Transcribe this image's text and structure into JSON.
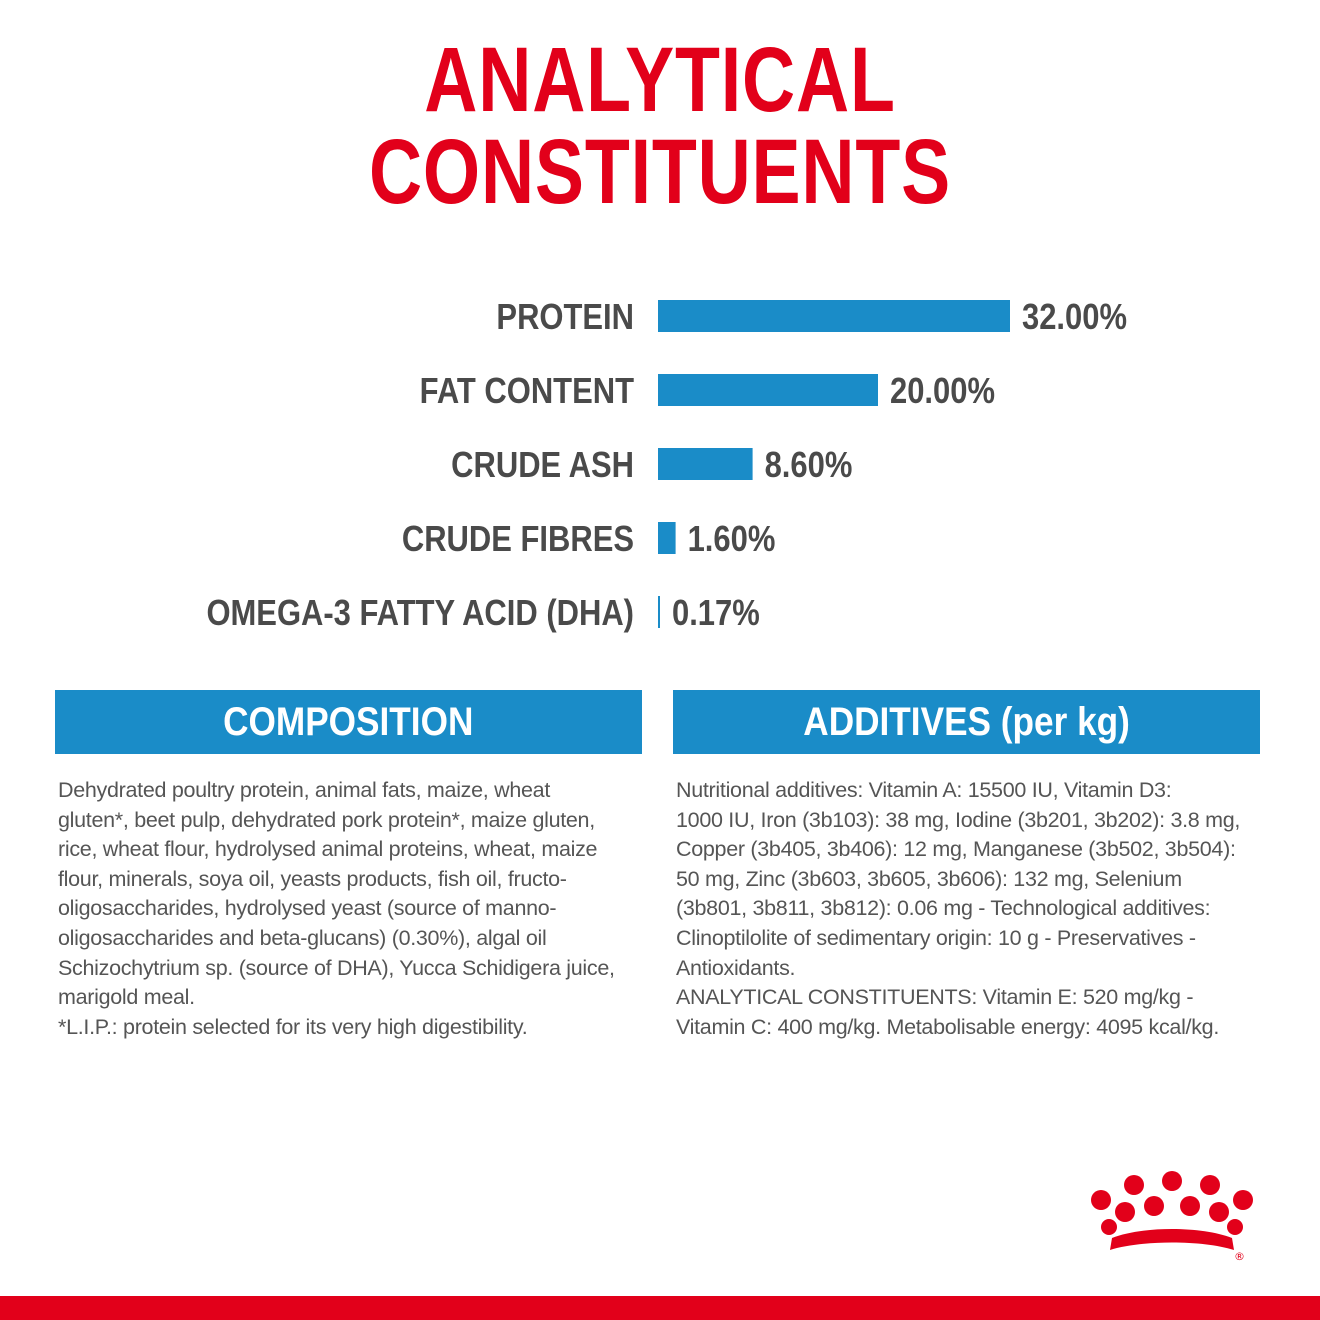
{
  "title": "ANALYTICAL CONSTITUENTS",
  "colors": {
    "title": "#e2001a",
    "bar": "#1a8cc8",
    "label": "#4a4a4a",
    "brand": "#e2001a"
  },
  "chart_data": {
    "type": "bar",
    "orientation": "horizontal",
    "categories": [
      "PROTEIN",
      "FAT CONTENT",
      "CRUDE ASH",
      "CRUDE FIBRES",
      "OMEGA-3 FATTY ACID (DHA)"
    ],
    "values": [
      32.0,
      20.0,
      8.6,
      1.6,
      0.17
    ],
    "value_labels": [
      "32.00%",
      "20.00%",
      "8.60%",
      "1.60%",
      "0.17%"
    ],
    "unit": "%",
    "xlim": [
      0,
      32
    ],
    "grid": false,
    "legend": "none"
  },
  "composition": {
    "heading": "COMPOSITION",
    "lines": [
      "Dehydrated poultry protein, animal fats, maize, wheat",
      "gluten*, beet pulp, dehydrated pork protein*, maize gluten,",
      "rice, wheat flour, hydrolysed animal proteins, wheat, maize",
      "flour, minerals, soya oil, yeasts products, fish oil, fructo-",
      "oligosaccharides, hydrolysed yeast (source of manno-",
      "oligosaccharides and beta-glucans) (0.30%), algal oil",
      "Schizochytrium sp. (source of DHA), Yucca Schidigera juice,",
      "marigold meal.",
      "*L.I.P.: protein selected for its very high digestibility."
    ]
  },
  "additives": {
    "heading": "ADDITIVES (per kg)",
    "lines": [
      "Nutritional additives: Vitamin A: 15500 IU, Vitamin D3:",
      "1000 IU, Iron (3b103): 38 mg, Iodine (3b201, 3b202): 3.8 mg,",
      "Copper (3b405, 3b406): 12 mg, Manganese (3b502, 3b504):",
      "50 mg, Zinc (3b603, 3b605, 3b606): 132 mg, Selenium",
      "(3b801, 3b811, 3b812): 0.06 mg - Technological additives:",
      "Clinoptilolite of sedimentary origin: 10 g - Preservatives -",
      "Antioxidants.",
      "ANALYTICAL CONSTITUENTS: Vitamin E: 520 mg/kg -",
      "Vitamin C: 400 mg/kg. Metabolisable energy: 4095 kcal/kg."
    ]
  },
  "logo": {
    "name": "royal-crown-logo",
    "mark": "®"
  }
}
